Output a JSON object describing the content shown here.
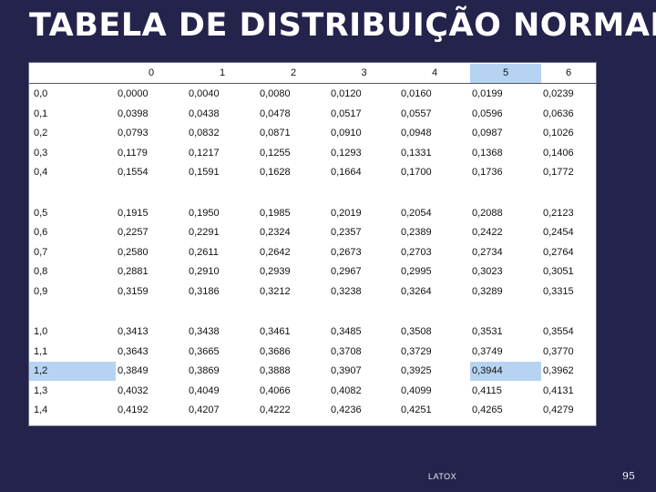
{
  "title": "TABELA DE DISTRIBUIÇÃO NORMAL",
  "table": {
    "columns": [
      "",
      "0",
      "1",
      "2",
      "3",
      "4",
      "5",
      "6"
    ],
    "highlight_color": "#b7d3f2",
    "highlighted_column": "5",
    "highlighted_row": "1,2",
    "highlighted_cell": {
      "row": "1,2",
      "column": "5",
      "value": "0,3944"
    },
    "groups": [
      [
        [
          "0,0",
          "0,0000",
          "0,0040",
          "0,0080",
          "0,0120",
          "0,0160",
          "0,0199",
          "0,0239"
        ],
        [
          "0,1",
          "0,0398",
          "0,0438",
          "0,0478",
          "0,0517",
          "0,0557",
          "0,0596",
          "0,0636"
        ],
        [
          "0,2",
          "0,0793",
          "0,0832",
          "0,0871",
          "0,0910",
          "0,0948",
          "0,0987",
          "0,1026"
        ],
        [
          "0,3",
          "0,1179",
          "0,1217",
          "0,1255",
          "0,1293",
          "0,1331",
          "0,1368",
          "0,1406"
        ],
        [
          "0,4",
          "0,1554",
          "0,1591",
          "0,1628",
          "0,1664",
          "0,1700",
          "0,1736",
          "0,1772"
        ]
      ],
      [
        [
          "0,5",
          "0,1915",
          "0,1950",
          "0,1985",
          "0,2019",
          "0,2054",
          "0,2088",
          "0,2123"
        ],
        [
          "0,6",
          "0,2257",
          "0,2291",
          "0,2324",
          "0,2357",
          "0,2389",
          "0,2422",
          "0,2454"
        ],
        [
          "0,7",
          "0,2580",
          "0,2611",
          "0,2642",
          "0,2673",
          "0,2703",
          "0,2734",
          "0,2764"
        ],
        [
          "0,8",
          "0,2881",
          "0,2910",
          "0,2939",
          "0,2967",
          "0,2995",
          "0,3023",
          "0,3051"
        ],
        [
          "0,9",
          "0,3159",
          "0,3186",
          "0,3212",
          "0,3238",
          "0,3264",
          "0,3289",
          "0,3315"
        ]
      ],
      [
        [
          "1,0",
          "0,3413",
          "0,3438",
          "0,3461",
          "0,3485",
          "0,3508",
          "0,3531",
          "0,3554"
        ],
        [
          "1,1",
          "0,3643",
          "0,3665",
          "0,3686",
          "0,3708",
          "0,3729",
          "0,3749",
          "0,3770"
        ],
        [
          "1,2",
          "0,3849",
          "0,3869",
          "0,3888",
          "0,3907",
          "0,3925",
          "0,3944",
          "0,3962"
        ],
        [
          "1,3",
          "0,4032",
          "0,4049",
          "0,4066",
          "0,4082",
          "0,4099",
          "0,4115",
          "0,4131"
        ],
        [
          "1,4",
          "0,4192",
          "0,4207",
          "0,4222",
          "0,4236",
          "0,4251",
          "0,4265",
          "0,4279"
        ]
      ]
    ]
  },
  "footer": "LATOX",
  "page_number": "95"
}
